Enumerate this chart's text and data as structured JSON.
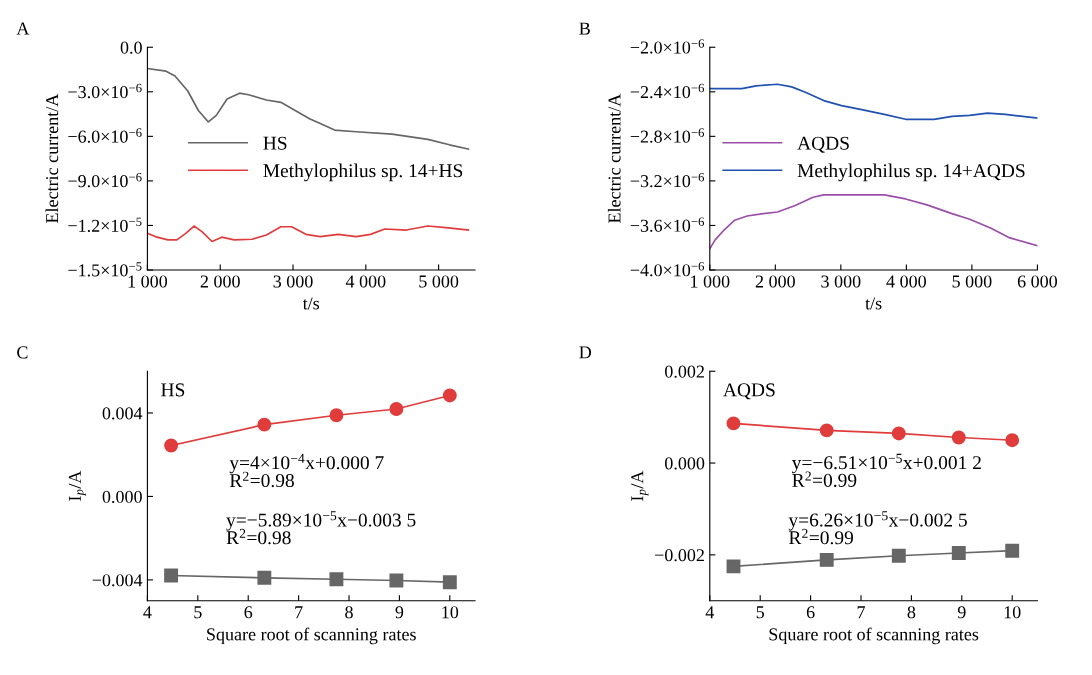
{
  "chart_data": [
    {
      "type": "line",
      "title": "A",
      "xlabel": "t/s",
      "ylabel": "Electric current/A",
      "xlim": [
        1000,
        5500
      ],
      "ylim": [
        -1.5e-05,
        0
      ],
      "xticks": [
        {
          "value": 1000,
          "label": "1 000"
        },
        {
          "value": 2000,
          "label": "2 000"
        },
        {
          "value": 3000,
          "label": "3 000"
        },
        {
          "value": 4000,
          "label": "4 000"
        },
        {
          "value": 5000,
          "label": "5 000"
        }
      ],
      "yticks": [
        {
          "value": 0,
          "label": "0.0"
        },
        {
          "value": -3e-06,
          "label": "−3.0×10$^{−6}$"
        },
        {
          "value": -6e-06,
          "label": "−6.0×10$^{−6}$"
        },
        {
          "value": -9e-06,
          "label": "−9.0×10$^{−6}$"
        },
        {
          "value": -1.2e-05,
          "label": "−1.2×10$^{−5}$"
        },
        {
          "value": -1.5e-05,
          "label": "−1.5×10$^{−5}$"
        }
      ],
      "legend": "center right",
      "grid": false,
      "series": [
        {
          "name": "HS",
          "color": "#666666",
          "x": [
            1000,
            1256,
            1379,
            1552,
            1700,
            1837,
            1946,
            2094,
            2266,
            2389,
            2635,
            2833,
            3030,
            3227,
            3374,
            3571,
            3867,
            4360,
            4852,
            5148,
            5409
          ],
          "values": [
            -1.43e-06,
            -1.61e-06,
            -1.94e-06,
            -2.93e-06,
            -4.26e-06,
            -5.03e-06,
            -4.59e-06,
            -3.49e-06,
            -3.09e-06,
            -3.2e-06,
            -3.55e-06,
            -3.71e-06,
            -4.26e-06,
            -4.81e-06,
            -5.14e-06,
            -5.58e-06,
            -5.69e-06,
            -5.85e-06,
            -6.2e-06,
            -6.57e-06,
            -6.86e-06
          ]
        },
        {
          "name": "Methylophilus sp. 14+HS",
          "color": "#e03c3c",
          "x": [
            1000,
            1108,
            1281,
            1404,
            1527,
            1640,
            1749,
            1887,
            2020,
            2192,
            2438,
            2635,
            2833,
            2980,
            3177,
            3374,
            3621,
            3867,
            4064,
            4261,
            4557,
            4852,
            5099,
            5409
          ],
          "values": [
            -1.253e-05,
            -1.275e-05,
            -1.297e-05,
            -1.297e-05,
            -1.253e-05,
            -1.204e-05,
            -1.242e-05,
            -1.308e-05,
            -1.279e-05,
            -1.297e-05,
            -1.293e-05,
            -1.264e-05,
            -1.209e-05,
            -1.209e-05,
            -1.26e-05,
            -1.275e-05,
            -1.26e-05,
            -1.275e-05,
            -1.26e-05,
            -1.224e-05,
            -1.231e-05,
            -1.204e-05,
            -1.215e-05,
            -1.231e-05
          ]
        }
      ]
    },
    {
      "type": "line",
      "title": "B",
      "xlabel": "t/s",
      "ylabel": "Electric current/A",
      "xlim": [
        1000,
        6000
      ],
      "ylim": [
        -4e-06,
        -2e-06
      ],
      "xticks": [
        {
          "value": 1000,
          "label": "1 000"
        },
        {
          "value": 2000,
          "label": "2 000"
        },
        {
          "value": 3000,
          "label": "3 000"
        },
        {
          "value": 4000,
          "label": "4 000"
        },
        {
          "value": 5000,
          "label": "5 000"
        },
        {
          "value": 6000,
          "label": "6 000"
        }
      ],
      "yticks": [
        {
          "value": -2e-06,
          "label": "−2.0×10$^{−6}$"
        },
        {
          "value": -2.4e-06,
          "label": "−2.4×10$^{−6}$"
        },
        {
          "value": -2.8e-06,
          "label": "−2.8×10$^{−6}$"
        },
        {
          "value": -3.2e-06,
          "label": "−3.2×10$^{−6}$"
        },
        {
          "value": -3.6e-06,
          "label": "−3.6×10$^{−6}$"
        },
        {
          "value": -4e-06,
          "label": "−4.0×10$^{−6}$"
        }
      ],
      "legend": "center right",
      "grid": false,
      "series": [
        {
          "name": "AQDS",
          "color": "#9b4fa8",
          "x": [
            1000,
            1082,
            1217,
            1380,
            1571,
            1815,
            2033,
            2304,
            2576,
            2739,
            3065,
            3663,
            3989,
            4315,
            4696,
            4967,
            5293,
            5565,
            6000
          ],
          "values": [
            -3.809e-06,
            -3.729e-06,
            -3.641e-06,
            -3.553e-06,
            -3.515e-06,
            -3.494e-06,
            -3.479e-06,
            -3.421e-06,
            -3.347e-06,
            -3.326e-06,
            -3.326e-06,
            -3.326e-06,
            -3.362e-06,
            -3.415e-06,
            -3.494e-06,
            -3.544e-06,
            -3.626e-06,
            -3.709e-06,
            -3.782e-06
          ]
        },
        {
          "name": "Methylophilus sp. 14+AQDS",
          "color": "#2050b0",
          "x": [
            1000,
            1489,
            1707,
            2033,
            2250,
            2467,
            2739,
            3011,
            3337,
            3663,
            3989,
            4424,
            4696,
            4967,
            5239,
            5511,
            6000
          ],
          "values": [
            -2.371e-06,
            -2.371e-06,
            -2.347e-06,
            -2.332e-06,
            -2.356e-06,
            -2.406e-06,
            -2.479e-06,
            -2.524e-06,
            -2.562e-06,
            -2.603e-06,
            -2.647e-06,
            -2.647e-06,
            -2.621e-06,
            -2.612e-06,
            -2.591e-06,
            -2.603e-06,
            -2.635e-06
          ]
        }
      ]
    },
    {
      "type": "line",
      "title": "C",
      "xlabel": "Square root of scanning rates",
      "ylabel": "I$_{p}$/A",
      "xlim": [
        4,
        10.5
      ],
      "ylim": [
        -0.005,
        0.006
      ],
      "xticks": [
        4,
        5,
        6,
        7,
        8,
        9,
        10
      ],
      "yticks": [
        {
          "value": -0.004,
          "label": "−0.004"
        },
        {
          "value": 0,
          "label": "0.000"
        },
        {
          "value": 0.004,
          "label": "0.004"
        }
      ],
      "grid": false,
      "annotations": [
        "HS",
        "y=4×10$^{−4}$x+0.000 7\nR$^{2}$=0.98",
        "y=−5.89×10$^{−5}$x−0.003 5\nR$^{2}$=0.98"
      ],
      "series": [
        {
          "color": "#e03c3c",
          "marker": "circle",
          "x": [
            4.47,
            6.32,
            7.75,
            8.94,
            10
          ],
          "values": [
            0.00244,
            0.00344,
            0.00389,
            0.00419,
            0.00484
          ]
        },
        {
          "color": "#666666",
          "marker": "square",
          "x": [
            4.47,
            6.32,
            7.75,
            8.94,
            10
          ],
          "values": [
            -0.00379,
            -0.0039,
            -0.00397,
            -0.00403,
            -0.00411
          ]
        }
      ]
    },
    {
      "type": "line",
      "title": "D",
      "xlabel": "Square root of scanning rates",
      "ylabel": "I$_{p}$/A",
      "xlim": [
        4,
        10.5
      ],
      "ylim": [
        -0.003,
        0.002
      ],
      "xticks": [
        4,
        5,
        6,
        7,
        8,
        9,
        10
      ],
      "yticks": [
        {
          "value": -0.002,
          "label": "−0.002"
        },
        {
          "value": 0,
          "label": "0.000"
        },
        {
          "value": 0.002,
          "label": "0.002"
        }
      ],
      "grid": false,
      "annotations": [
        "AQDS",
        "y=−6.51×10$^{−5}$x+0.001 2\nR$^{2}$=0.99",
        "y=6.26×10$^{−5}$x−0.002 5\nR$^{2}$=0.99"
      ],
      "series": [
        {
          "color": "#e03c3c",
          "marker": "circle",
          "x": [
            4.47,
            6.32,
            7.75,
            8.94,
            10
          ],
          "values": [
            0.000864,
            0.000711,
            0.000645,
            0.000557,
            0.000498
          ]
        },
        {
          "color": "#666666",
          "marker": "square",
          "x": [
            4.47,
            6.32,
            7.75,
            8.94,
            10
          ],
          "values": [
            -0.00225,
            -0.00211,
            -0.00202,
            -0.00196,
            -0.00191
          ]
        }
      ]
    }
  ]
}
